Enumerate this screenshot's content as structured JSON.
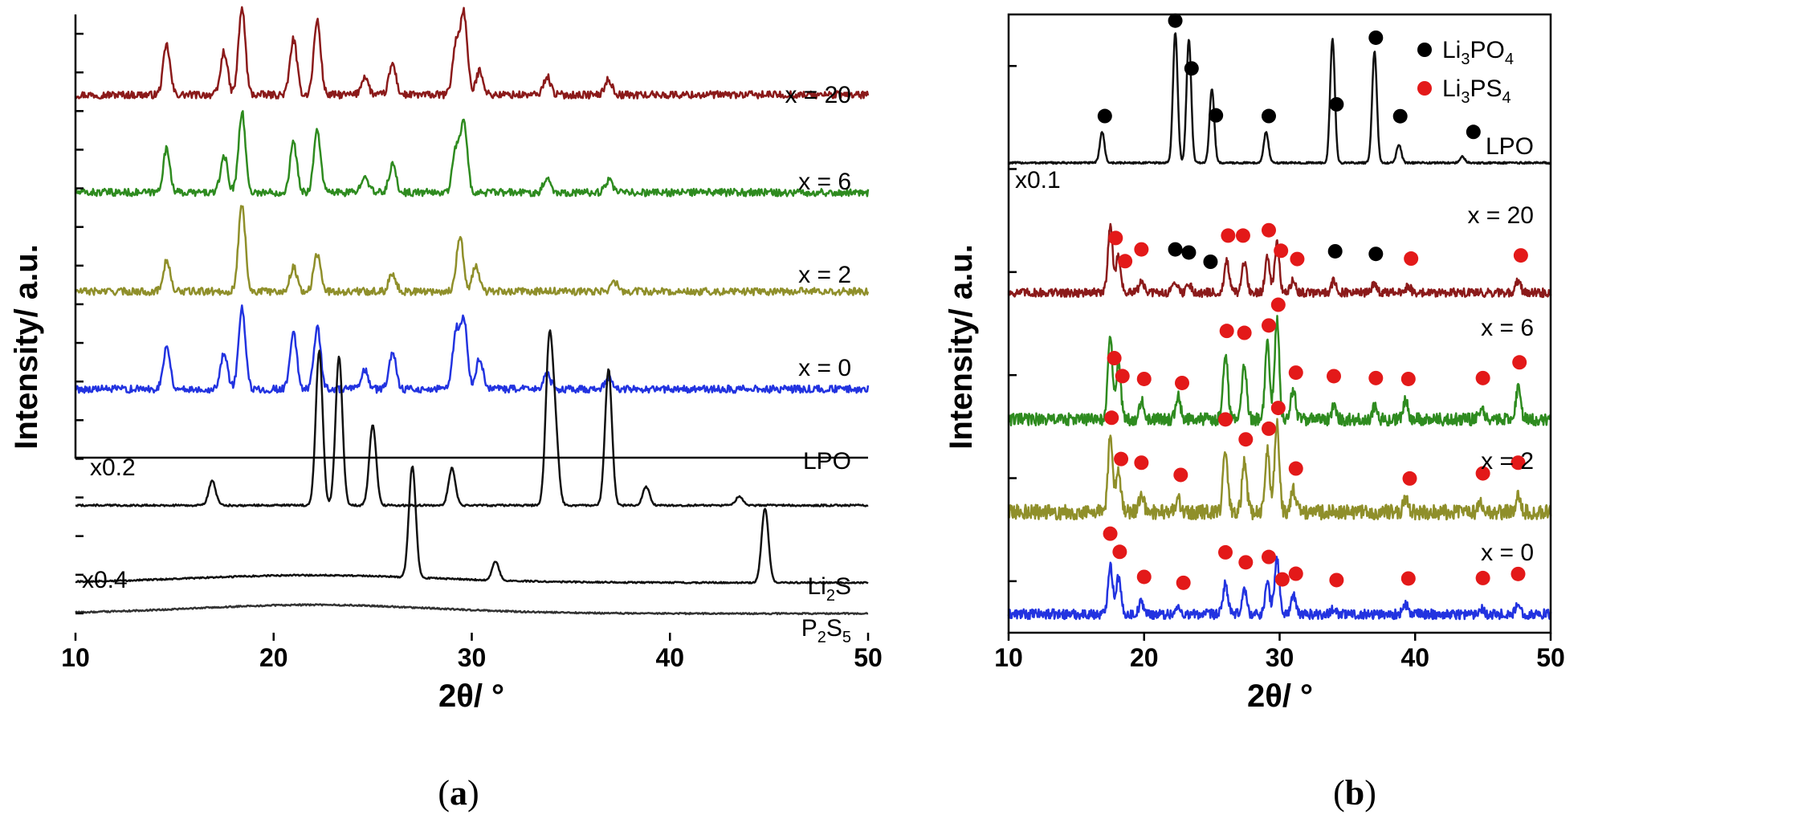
{
  "figure": {
    "panel_labels": [
      {
        "open": "(",
        "letter": "a",
        "close": ")"
      },
      {
        "open": "(",
        "letter": "b",
        "close": ")"
      }
    ]
  },
  "chart_data": [
    {
      "type": "line",
      "panel": "a",
      "title": "",
      "xlabel": "2θ/ °",
      "ylabel": "Intensity/ a.u.",
      "xlim": [
        10,
        50
      ],
      "xticks": [
        10,
        20,
        30,
        40,
        50
      ],
      "y_minor_ticks": 16,
      "series": [
        {
          "name": "x = 20",
          "label": "x = 20",
          "color": "#8b1a1a",
          "baseline": 0.87,
          "noise": 0.006,
          "peaks": [
            [
              14.6,
              0.08
            ],
            [
              17.5,
              0.07
            ],
            [
              18.4,
              0.14
            ],
            [
              21.0,
              0.09
            ],
            [
              22.2,
              0.12
            ],
            [
              24.6,
              0.03
            ],
            [
              26.0,
              0.05
            ],
            [
              29.2,
              0.08
            ],
            [
              29.6,
              0.13
            ],
            [
              30.4,
              0.04
            ],
            [
              33.8,
              0.03
            ],
            [
              36.9,
              0.025
            ]
          ]
        },
        {
          "name": "x = 6",
          "label": "x = 6",
          "color": "#2e8b1f",
          "baseline": 0.712,
          "noise": 0.006,
          "peaks": [
            [
              14.6,
              0.07
            ],
            [
              17.5,
              0.06
            ],
            [
              18.4,
              0.13
            ],
            [
              21.0,
              0.08
            ],
            [
              22.2,
              0.1
            ],
            [
              24.6,
              0.03
            ],
            [
              26.0,
              0.045
            ],
            [
              29.2,
              0.07
            ],
            [
              29.6,
              0.11
            ],
            [
              33.8,
              0.025
            ],
            [
              36.9,
              0.02
            ]
          ]
        },
        {
          "name": "x = 2",
          "label": "x = 2",
          "color": "#8f8f2a",
          "baseline": 0.552,
          "noise": 0.006,
          "peaks": [
            [
              14.6,
              0.05
            ],
            [
              18.4,
              0.14
            ],
            [
              21.0,
              0.04
            ],
            [
              22.2,
              0.06
            ],
            [
              26.0,
              0.03
            ],
            [
              29.4,
              0.09
            ],
            [
              30.2,
              0.04
            ],
            [
              37.2,
              0.015
            ]
          ]
        },
        {
          "name": "x = 0",
          "label": "x = 0",
          "color": "#2233e0",
          "baseline": 0.394,
          "noise": 0.006,
          "peaks": [
            [
              14.6,
              0.07
            ],
            [
              17.5,
              0.06
            ],
            [
              18.4,
              0.13
            ],
            [
              21.0,
              0.09
            ],
            [
              22.2,
              0.1
            ],
            [
              24.6,
              0.03
            ],
            [
              26.0,
              0.06
            ],
            [
              29.2,
              0.09
            ],
            [
              29.6,
              0.11
            ],
            [
              30.4,
              0.05
            ],
            [
              33.8,
              0.025
            ],
            [
              36.9,
              0.02
            ]
          ]
        },
        {
          "name": "LPO",
          "label": "LPO",
          "factor_label": "x0.2",
          "color": "#111111",
          "baseline": 0.206,
          "noise": 0.0015,
          "peaks": [
            [
              16.9,
              0.04
            ],
            [
              22.3,
              0.25
            ],
            [
              23.3,
              0.24
            ],
            [
              25.0,
              0.13
            ],
            [
              29.0,
              0.06
            ],
            [
              33.9,
              0.25
            ],
            [
              34.2,
              0.12
            ],
            [
              36.9,
              0.22
            ],
            [
              38.8,
              0.03
            ],
            [
              43.5,
              0.015
            ]
          ]
        },
        {
          "name": "Li2S",
          "label_parts": [
            "Li",
            "2",
            "S"
          ],
          "factor_label": "x0.4",
          "color": "#111111",
          "baseline": 0.081,
          "noise": 0.0012,
          "hump": 0.012,
          "peaks": [
            [
              27.0,
              0.18
            ],
            [
              31.2,
              0.03
            ],
            [
              44.8,
              0.12
            ]
          ]
        },
        {
          "name": "P2S5",
          "label_parts": [
            "P",
            "2",
            "S",
            "5"
          ],
          "color": "#333333",
          "baseline": 0.031,
          "noise": 0.0012,
          "hump": 0.014,
          "peaks": []
        }
      ]
    },
    {
      "type": "line",
      "panel": "b",
      "title": "",
      "xlabel": "2θ/ °",
      "ylabel": "Intensity/ a.u.",
      "xlim": [
        10,
        50
      ],
      "xticks": [
        10,
        20,
        30,
        40,
        50
      ],
      "y_minor_ticks": 6,
      "legend": {
        "placement": "top-right",
        "entries": [
          {
            "marker_color": "#000000",
            "label_parts": [
              "Li",
              "3",
              "PO",
              "4"
            ]
          },
          {
            "marker_color": "#e31919",
            "label_parts": [
              "Li",
              "3",
              "PS",
              "4"
            ]
          }
        ]
      },
      "series": [
        {
          "name": "LPO",
          "label": "LPO",
          "factor_label": "x0.1",
          "color": "#111111",
          "baseline": 0.76,
          "noise": 0.0015,
          "peaks": [
            [
              16.9,
              0.05
            ],
            [
              22.3,
              0.21
            ],
            [
              23.3,
              0.2
            ],
            [
              25.0,
              0.12
            ],
            [
              29.0,
              0.05
            ],
            [
              33.9,
              0.2
            ],
            [
              37.0,
              0.18
            ],
            [
              38.8,
              0.03
            ],
            [
              43.5,
              0.01
            ]
          ],
          "markers": {
            "black": [
              17.1,
              22.3,
              23.5,
              25.3,
              29.2,
              34.2,
              37.1,
              38.9,
              44.3
            ],
            "red": []
          }
        },
        {
          "name": "x = 20",
          "label": "x = 20",
          "color": "#8b1a1a",
          "baseline": 0.55,
          "noise": 0.007,
          "peaks": [
            [
              17.5,
              0.11
            ],
            [
              18.1,
              0.06
            ],
            [
              19.8,
              0.02
            ],
            [
              22.3,
              0.02
            ],
            [
              23.3,
              0.015
            ],
            [
              26.1,
              0.05
            ],
            [
              27.4,
              0.05
            ],
            [
              29.1,
              0.06
            ],
            [
              29.8,
              0.08
            ],
            [
              31.0,
              0.02
            ],
            [
              34.0,
              0.02
            ],
            [
              37.0,
              0.015
            ],
            [
              39.5,
              0.01
            ],
            [
              47.6,
              0.02
            ]
          ],
          "markers": {
            "black": [
              22.3,
              23.3,
              24.9,
              34.1,
              37.1
            ],
            "red": [
              17.9,
              18.6,
              19.8,
              26.2,
              27.3,
              29.2,
              30.1,
              31.3,
              39.7,
              47.8
            ]
          }
        },
        {
          "name": "x = 6",
          "label": "x = 6",
          "color": "#2e8b1f",
          "baseline": 0.345,
          "noise": 0.01,
          "peaks": [
            [
              17.5,
              0.13
            ],
            [
              18.1,
              0.09
            ],
            [
              19.8,
              0.03
            ],
            [
              22.5,
              0.04
            ],
            [
              26.0,
              0.11
            ],
            [
              27.4,
              0.09
            ],
            [
              29.1,
              0.12
            ],
            [
              29.8,
              0.16
            ],
            [
              31.0,
              0.05
            ],
            [
              34.0,
              0.02
            ],
            [
              37.0,
              0.02
            ],
            [
              39.3,
              0.03
            ],
            [
              44.9,
              0.02
            ],
            [
              47.6,
              0.05
            ]
          ],
          "markers": {
            "black": [],
            "red": [
              17.8,
              18.4,
              20.0,
              22.8,
              26.1,
              27.4,
              29.2,
              29.9,
              31.2,
              34.0,
              37.1,
              39.5,
              45.0,
              47.7
            ]
          }
        },
        {
          "name": "x = 2",
          "label": "x = 2",
          "color": "#8f8f2a",
          "baseline": 0.195,
          "noise": 0.012,
          "peaks": [
            [
              17.5,
              0.12
            ],
            [
              18.1,
              0.07
            ],
            [
              19.8,
              0.03
            ],
            [
              22.5,
              0.02
            ],
            [
              26.0,
              0.1
            ],
            [
              27.4,
              0.08
            ],
            [
              29.1,
              0.1
            ],
            [
              29.8,
              0.14
            ],
            [
              31.0,
              0.04
            ],
            [
              39.3,
              0.02
            ],
            [
              44.9,
              0.015
            ],
            [
              47.6,
              0.03
            ]
          ],
          "markers": {
            "black": [],
            "red": [
              17.6,
              18.3,
              19.8,
              22.7,
              26.0,
              27.5,
              29.2,
              29.9,
              31.2,
              39.6,
              45.0,
              47.6
            ]
          }
        },
        {
          "name": "x = 0",
          "label": "x = 0",
          "color": "#2233e0",
          "baseline": 0.03,
          "noise": 0.008,
          "peaks": [
            [
              17.5,
              0.08
            ],
            [
              18.1,
              0.06
            ],
            [
              19.8,
              0.02
            ],
            [
              22.5,
              0.01
            ],
            [
              26.0,
              0.05
            ],
            [
              27.4,
              0.04
            ],
            [
              29.1,
              0.05
            ],
            [
              29.8,
              0.09
            ],
            [
              31.0,
              0.03
            ],
            [
              34.0,
              0.01
            ],
            [
              39.3,
              0.015
            ],
            [
              44.9,
              0.01
            ],
            [
              47.6,
              0.015
            ]
          ],
          "markers": {
            "black": [],
            "red": [
              17.5,
              18.2,
              20.0,
              22.9,
              26.0,
              27.5,
              29.2,
              30.2,
              31.2,
              34.2,
              39.5,
              45.0,
              47.6
            ]
          }
        }
      ]
    }
  ]
}
